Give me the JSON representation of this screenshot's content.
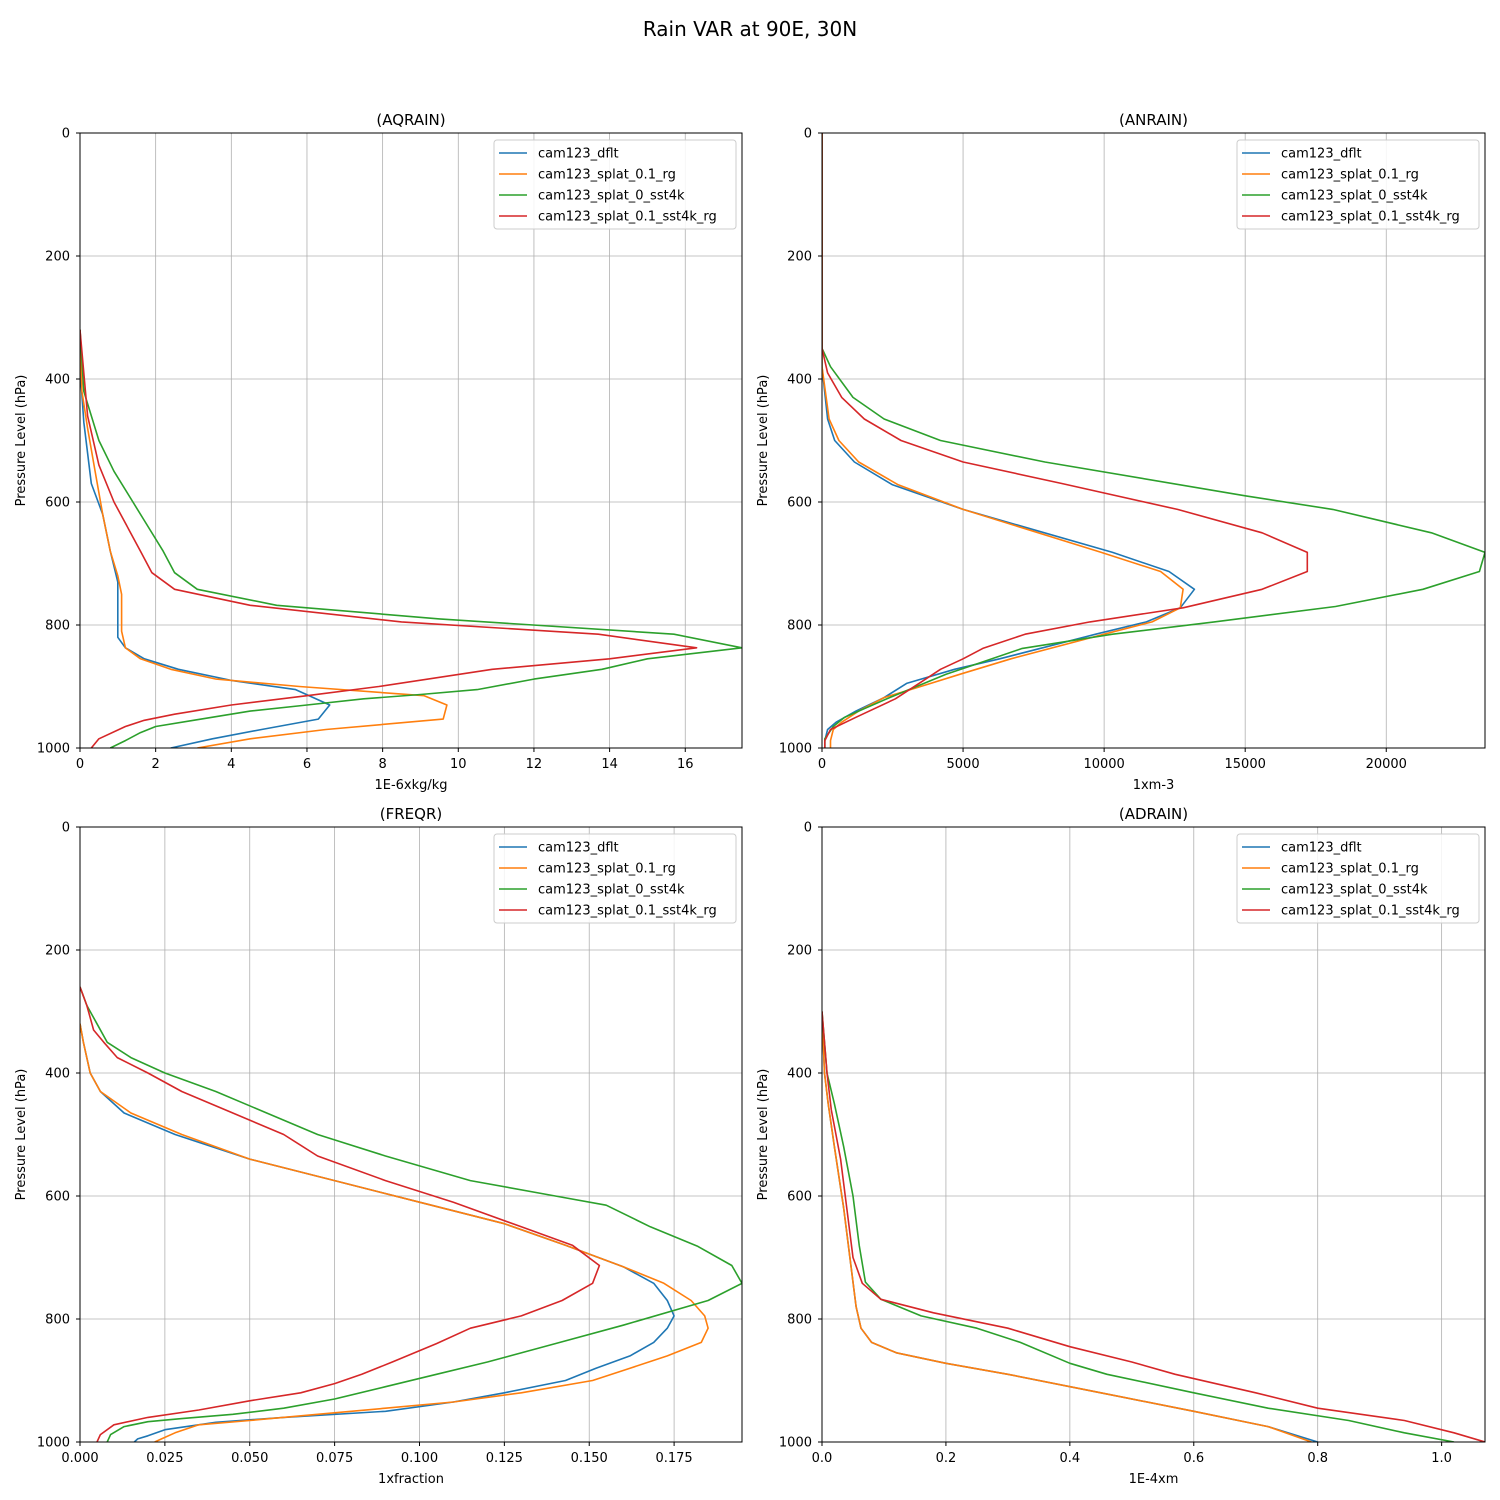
{
  "figure": {
    "title": "Rain VAR at 90E, 30N"
  },
  "colors": {
    "cam123_dflt": "#1f77b4",
    "cam123_splat_0.1_rg": "#ff7f0e",
    "cam123_splat_0_sst4k": "#2ca02c",
    "cam123_splat_0.1_sst4k_rg": "#d62728"
  },
  "chart_data": [
    {
      "type": "line",
      "title": "(AQRAIN)",
      "xlabel": "1E-6xkg/kg",
      "ylabel": "Pressure Level (hPa)",
      "xlim": [
        0,
        17.5
      ],
      "ylim": [
        1000,
        0
      ],
      "xticks": [
        0,
        2,
        4,
        6,
        8,
        10,
        12,
        14,
        16
      ],
      "xtick_labels": [
        "0",
        "2",
        "4",
        "6",
        "8",
        "10",
        "12",
        "14",
        "16"
      ],
      "yticks": [
        0,
        200,
        400,
        600,
        800,
        1000
      ],
      "ytick_labels": [
        "0",
        "200",
        "400",
        "600",
        "800",
        "1000"
      ],
      "legend_position": "upper right",
      "series": [
        {
          "name": "cam123_dflt",
          "x": [
            0,
            0.02,
            0.1,
            0.3,
            0.6,
            0.8,
            1.0,
            1.0,
            1.0,
            1.0,
            1.2,
            1.7,
            2.6,
            4.0,
            5.7,
            6.6,
            6.3,
            4.8,
            3.5,
            2.4
          ],
          "y": [
            320,
            400,
            470,
            570,
            620,
            680,
            730,
            760,
            790,
            820,
            837,
            855,
            872,
            890,
            905,
            930,
            953,
            970,
            985,
            1000
          ]
        },
        {
          "name": "cam123_splat_0.1_rg",
          "x": [
            0,
            0.05,
            0.2,
            0.4,
            0.6,
            0.8,
            1.0,
            1.1,
            1.1,
            1.1,
            1.2,
            1.6,
            2.4,
            3.6,
            5.8,
            9.1,
            9.7,
            9.6,
            6.5,
            4.5,
            3.1
          ],
          "y": [
            320,
            420,
            480,
            550,
            620,
            680,
            720,
            750,
            780,
            810,
            837,
            855,
            872,
            888,
            900,
            915,
            930,
            953,
            970,
            985,
            1000
          ]
        },
        {
          "name": "cam123_splat_0_sst4k",
          "x": [
            0,
            0.1,
            0.5,
            0.9,
            1.7,
            2.2,
            2.5,
            3.1,
            5.2,
            9.5,
            15.7,
            17.5,
            15.0,
            13.8,
            12.0,
            10.5,
            9.0,
            7.5,
            6.0,
            4.5,
            3.0,
            2.0,
            1.6,
            1.2,
            0.8
          ],
          "y": [
            320,
            420,
            500,
            550,
            630,
            680,
            715,
            742,
            768,
            790,
            815,
            837,
            855,
            872,
            888,
            905,
            913,
            920,
            930,
            940,
            955,
            965,
            975,
            988,
            1000
          ]
        },
        {
          "name": "cam123_splat_0.1_sst4k_rg",
          "x": [
            0,
            0.2,
            0.5,
            0.9,
            1.6,
            1.9,
            2.5,
            4.5,
            8.5,
            13.7,
            16.3,
            14.0,
            10.9,
            7.9,
            6.0,
            4.0,
            2.5,
            1.7,
            1.2,
            0.5,
            0.3
          ],
          "y": [
            320,
            460,
            540,
            600,
            680,
            715,
            742,
            768,
            795,
            815,
            837,
            855,
            872,
            900,
            915,
            930,
            945,
            955,
            965,
            985,
            1000
          ]
        }
      ]
    },
    {
      "type": "line",
      "title": "(ANRAIN)",
      "xlabel": "1xm-3",
      "ylabel": "Pressure Level (hPa)",
      "xlim": [
        0,
        23500
      ],
      "ylim": [
        1000,
        0
      ],
      "xticks": [
        0,
        5000,
        10000,
        15000,
        20000
      ],
      "xtick_labels": [
        "0",
        "5000",
        "10000",
        "15000",
        "20000"
      ],
      "yticks": [
        0,
        200,
        400,
        600,
        800,
        1000
      ],
      "ytick_labels": [
        "0",
        "200",
        "400",
        "600",
        "800",
        "1000"
      ],
      "legend_position": "upper right",
      "series": [
        {
          "name": "cam123_dflt",
          "x": [
            0,
            0,
            200,
            450,
            1150,
            2500,
            5000,
            10300,
            12300,
            13200,
            12700,
            11500,
            9700,
            6300,
            4700,
            3000,
            2200,
            1200,
            500,
            200,
            100,
            100
          ],
          "y": [
            0,
            380,
            465,
            500,
            535,
            572,
            612,
            682,
            713,
            742,
            772,
            795,
            815,
            855,
            872,
            895,
            918,
            940,
            958,
            970,
            988,
            1000
          ]
        },
        {
          "name": "cam123_splat_0.1_rg",
          "x": [
            0,
            0,
            250,
            600,
            1300,
            2700,
            5000,
            9900,
            12000,
            12800,
            12700,
            11700,
            10000,
            6700,
            4900,
            3500,
            2200,
            1300,
            700,
            400,
            300,
            300
          ],
          "y": [
            0,
            380,
            465,
            500,
            535,
            572,
            612,
            682,
            713,
            742,
            772,
            795,
            815,
            855,
            880,
            900,
            918,
            940,
            958,
            970,
            988,
            1000
          ]
        },
        {
          "name": "cam123_splat_0_sst4k",
          "x": [
            0,
            0,
            300,
            1100,
            2200,
            4200,
            7900,
            15000,
            18100,
            21600,
            23500,
            23300,
            21300,
            18200,
            13900,
            10300,
            7100,
            5700,
            4400,
            2300,
            800,
            400,
            100,
            100
          ],
          "y": [
            0,
            350,
            380,
            430,
            465,
            500,
            535,
            590,
            612,
            650,
            682,
            713,
            742,
            770,
            795,
            815,
            838,
            860,
            880,
            920,
            950,
            965,
            985,
            1000
          ]
        },
        {
          "name": "cam123_splat_0.1_sst4k_rg",
          "x": [
            0,
            0,
            200,
            700,
            1500,
            2800,
            5000,
            8500,
            12600,
            15600,
            17200,
            17200,
            15600,
            12800,
            9500,
            7200,
            5700,
            5000,
            4200,
            3600,
            2600,
            1200,
            300,
            100,
            100
          ],
          "y": [
            0,
            350,
            390,
            430,
            465,
            500,
            535,
            570,
            612,
            650,
            682,
            713,
            742,
            772,
            795,
            815,
            838,
            855,
            872,
            890,
            920,
            950,
            970,
            988,
            1000
          ]
        }
      ]
    },
    {
      "type": "line",
      "title": "(FREQR)",
      "xlabel": "1xfraction",
      "ylabel": "Pressure Level (hPa)",
      "xlim": [
        0,
        0.195
      ],
      "ylim": [
        1000,
        0
      ],
      "xticks": [
        0,
        0.025,
        0.05,
        0.075,
        0.1,
        0.125,
        0.15,
        0.175
      ],
      "xtick_labels": [
        "0.000",
        "0.025",
        "0.050",
        "0.075",
        "0.100",
        "0.125",
        "0.150",
        "0.175"
      ],
      "yticks": [
        0,
        200,
        400,
        600,
        800,
        1000
      ],
      "ytick_labels": [
        "0",
        "200",
        "400",
        "600",
        "800",
        "1000"
      ],
      "legend_position": "upper right",
      "series": [
        {
          "name": "cam123_dflt",
          "x": [
            0,
            0.001,
            0.003,
            0.006,
            0.013,
            0.028,
            0.05,
            0.075,
            0.1,
            0.125,
            0.143,
            0.16,
            0.169,
            0.173,
            0.175,
            0.173,
            0.169,
            0.162,
            0.152,
            0.143,
            0.125,
            0.11,
            0.09,
            0.06,
            0.04,
            0.025,
            0.02,
            0.017,
            0.016
          ],
          "y": [
            320,
            350,
            400,
            430,
            465,
            500,
            540,
            575,
            610,
            645,
            680,
            715,
            742,
            770,
            795,
            815,
            838,
            860,
            880,
            900,
            920,
            935,
            950,
            960,
            968,
            980,
            990,
            995,
            1000
          ]
        },
        {
          "name": "cam123_splat_0.1_rg",
          "x": [
            0,
            0.001,
            0.003,
            0.006,
            0.015,
            0.03,
            0.05,
            0.075,
            0.1,
            0.125,
            0.143,
            0.16,
            0.172,
            0.18,
            0.184,
            0.185,
            0.183,
            0.173,
            0.162,
            0.151,
            0.13,
            0.11,
            0.09,
            0.07,
            0.05,
            0.035,
            0.028,
            0.024,
            0.022
          ],
          "y": [
            320,
            350,
            400,
            430,
            465,
            500,
            540,
            575,
            610,
            645,
            680,
            715,
            742,
            770,
            795,
            815,
            838,
            860,
            880,
            900,
            920,
            935,
            945,
            955,
            965,
            972,
            985,
            995,
            1000
          ]
        },
        {
          "name": "cam123_splat_0_sst4k",
          "x": [
            0,
            0.002,
            0.005,
            0.008,
            0.015,
            0.025,
            0.04,
            0.055,
            0.07,
            0.09,
            0.115,
            0.14,
            0.155,
            0.168,
            0.182,
            0.192,
            0.195,
            0.185,
            0.16,
            0.14,
            0.12,
            0.105,
            0.09,
            0.075,
            0.06,
            0.045,
            0.03,
            0.02,
            0.013,
            0.009,
            0.008
          ],
          "y": [
            260,
            290,
            320,
            350,
            375,
            400,
            430,
            465,
            500,
            535,
            575,
            600,
            615,
            650,
            682,
            713,
            742,
            770,
            810,
            840,
            870,
            890,
            910,
            930,
            945,
            955,
            962,
            967,
            975,
            988,
            1000
          ]
        },
        {
          "name": "cam123_splat_0.1_sst4k_rg",
          "x": [
            0,
            0.002,
            0.004,
            0.007,
            0.011,
            0.02,
            0.03,
            0.045,
            0.06,
            0.07,
            0.09,
            0.11,
            0.13,
            0.145,
            0.153,
            0.151,
            0.142,
            0.13,
            0.115,
            0.105,
            0.092,
            0.083,
            0.075,
            0.065,
            0.05,
            0.035,
            0.02,
            0.01,
            0.006,
            0.005
          ],
          "y": [
            260,
            290,
            330,
            350,
            375,
            400,
            430,
            465,
            500,
            535,
            575,
            610,
            650,
            680,
            713,
            742,
            770,
            795,
            815,
            840,
            870,
            890,
            905,
            920,
            933,
            948,
            960,
            972,
            988,
            1000
          ]
        }
      ]
    },
    {
      "type": "line",
      "title": "(ADRAIN)",
      "xlabel": "1E-4xm",
      "ylabel": "Pressure Level (hPa)",
      "xlim": [
        0,
        1.07
      ],
      "ylim": [
        1000,
        0
      ],
      "xticks": [
        0,
        0.2,
        0.4,
        0.6,
        0.8,
        1.0
      ],
      "xtick_labels": [
        "0.0",
        "0.2",
        "0.4",
        "0.6",
        "0.8",
        "1.0"
      ],
      "yticks": [
        0,
        200,
        400,
        600,
        800,
        1000
      ],
      "ytick_labels": [
        "0",
        "200",
        "400",
        "600",
        "800",
        "1000"
      ],
      "legend_position": "upper right",
      "series": [
        {
          "name": "cam123_dflt",
          "x": [
            0,
            0.004,
            0.01,
            0.02,
            0.035,
            0.045,
            0.055,
            0.063,
            0.08,
            0.12,
            0.2,
            0.3,
            0.45,
            0.6,
            0.72,
            0.8
          ],
          "y": [
            300,
            400,
            450,
            520,
            620,
            700,
            780,
            815,
            838,
            855,
            872,
            890,
            920,
            950,
            975,
            1000
          ]
        },
        {
          "name": "cam123_splat_0.1_rg",
          "x": [
            0,
            0.004,
            0.01,
            0.02,
            0.035,
            0.045,
            0.055,
            0.063,
            0.08,
            0.12,
            0.2,
            0.3,
            0.45,
            0.6,
            0.72,
            0.79
          ],
          "y": [
            300,
            400,
            450,
            520,
            620,
            700,
            780,
            815,
            838,
            855,
            872,
            890,
            920,
            950,
            975,
            1000
          ]
        },
        {
          "name": "cam123_splat_0_sst4k",
          "x": [
            0,
            0.008,
            0.02,
            0.035,
            0.05,
            0.06,
            0.07,
            0.095,
            0.16,
            0.25,
            0.32,
            0.4,
            0.46,
            0.6,
            0.72,
            0.85,
            0.94,
            1.02
          ],
          "y": [
            300,
            400,
            450,
            520,
            600,
            680,
            740,
            768,
            795,
            815,
            838,
            872,
            890,
            920,
            945,
            965,
            985,
            1000
          ]
        },
        {
          "name": "cam123_splat_0.1_sst4k_rg",
          "x": [
            0,
            0.008,
            0.015,
            0.03,
            0.04,
            0.05,
            0.065,
            0.095,
            0.18,
            0.3,
            0.4,
            0.5,
            0.57,
            0.7,
            0.8,
            0.94,
            1.02,
            1.07
          ],
          "y": [
            300,
            400,
            460,
            540,
            620,
            700,
            742,
            768,
            790,
            815,
            845,
            870,
            890,
            920,
            945,
            965,
            985,
            1000
          ]
        }
      ]
    }
  ]
}
